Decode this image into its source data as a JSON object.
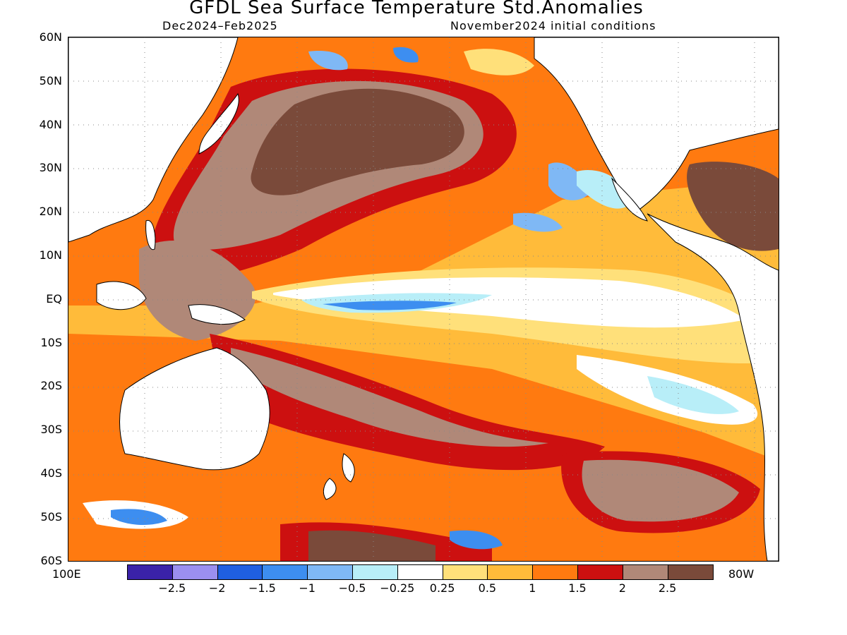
{
  "title": "GFDL Sea Surface Temperature Std.Anomalies",
  "subtitle_left": "Dec2024–Feb2025",
  "subtitle_right": "November2024 initial conditions",
  "lat_labels": [
    "60N",
    "50N",
    "40N",
    "30N",
    "20N",
    "10N",
    "EQ",
    "10S",
    "20S",
    "30S",
    "40S",
    "50S",
    "60S"
  ],
  "lon_labels": {
    "left": "100E",
    "right": "80W"
  },
  "colorbar": {
    "colors": [
      "#3a22a8",
      "#9b8ff0",
      "#1f5fe0",
      "#3d8ef0",
      "#7fb8f5",
      "#b8eef8",
      "#ffffff",
      "#ffe07a",
      "#ffbb3a",
      "#ff7a10",
      "#cc1010",
      "#b08878",
      "#7a4a3a"
    ],
    "labels": [
      "−2.5",
      "−2",
      "−1.5",
      "−1",
      "−0.5",
      "−0.25",
      "0.25",
      "0.5",
      "1",
      "1.5",
      "2",
      "2.5"
    ]
  },
  "land_color": "#ffffff"
}
